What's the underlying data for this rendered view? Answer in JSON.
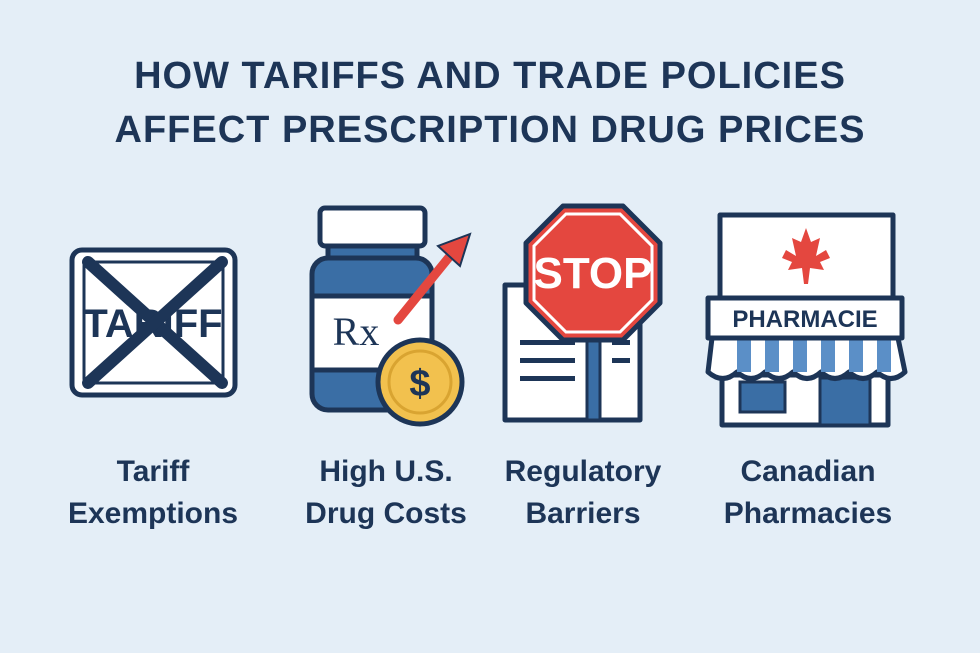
{
  "header": {
    "title_lines": [
      "HOW TARIFFS AND TRADE POLICIES",
      "AFFECT PRESCRIPTION DRUG PRICES"
    ]
  },
  "items": [
    {
      "label_lines": [
        "Tariff",
        "Exemptions"
      ],
      "icon_text": "TARIFF"
    },
    {
      "label_lines": [
        "High U.S.",
        "Drug Costs"
      ],
      "icon_text": "Rx",
      "coin_text": "$"
    },
    {
      "label_lines": [
        "Regulatory",
        "Barriers"
      ],
      "icon_text": "STOP"
    },
    {
      "label_lines": [
        "Canadian",
        "Pharmacies"
      ],
      "icon_text": "PHARMACIE"
    }
  ]
}
